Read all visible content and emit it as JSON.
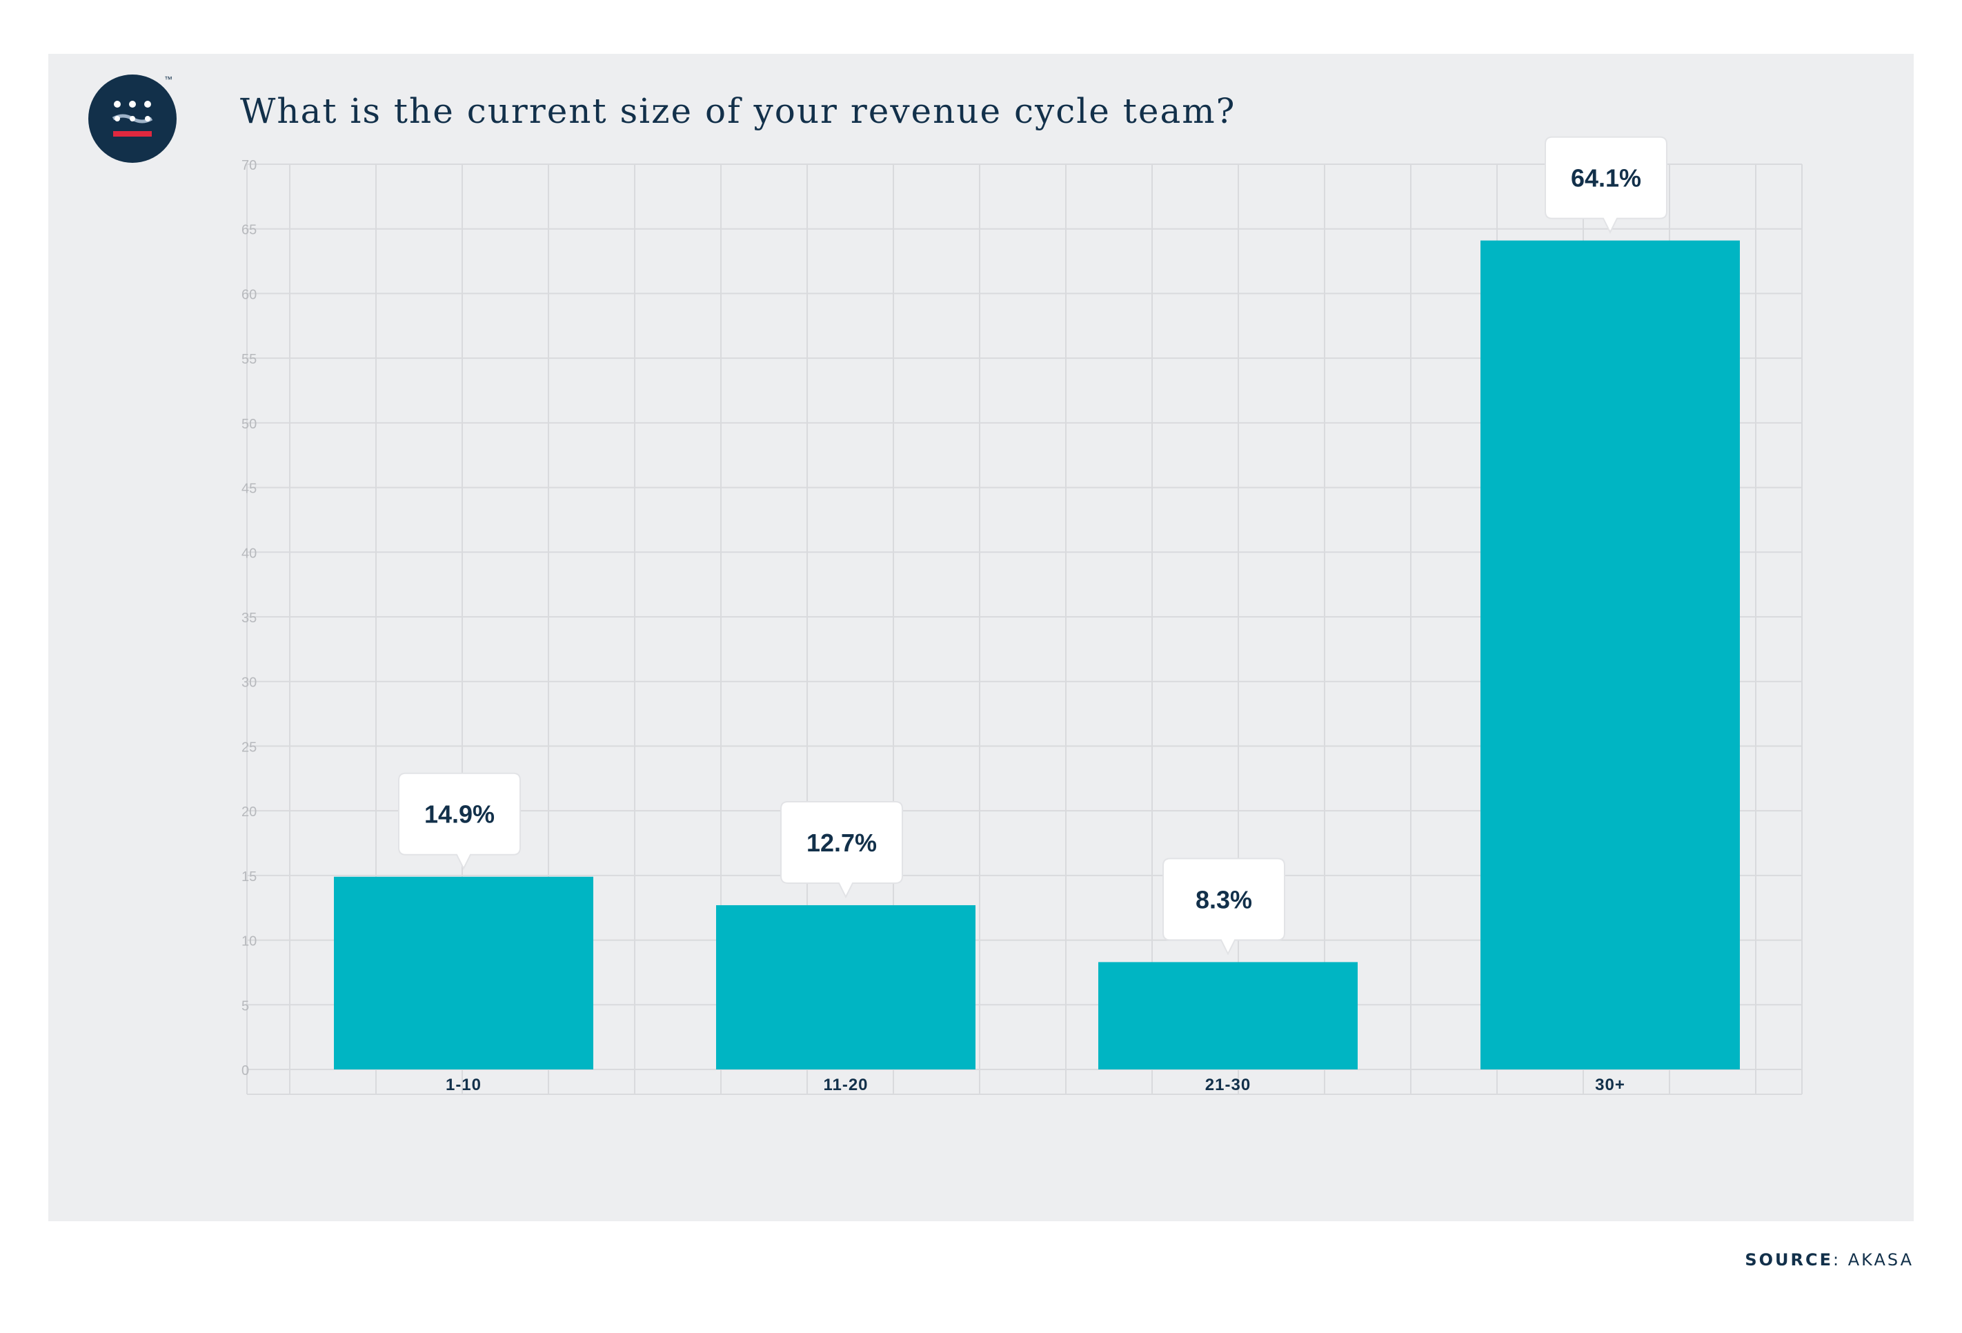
{
  "colors": {
    "background": "#ffffff",
    "panel": "#edeef0",
    "bar": "#00b5c3",
    "text_dark": "#12304a",
    "grid": "#d9dadd",
    "tick": "#b7b9bd",
    "accent_red": "#e0283f"
  },
  "logo": {
    "icon": "akasa-logo-icon",
    "trademark": "™"
  },
  "source": {
    "label": "SOURCE",
    "separator": ": ",
    "value": "AKASA"
  },
  "chart_data": {
    "type": "bar",
    "title": "What is the current size of your revenue cycle team?",
    "categories": [
      "1-10",
      "11-20",
      "21-30",
      "30+"
    ],
    "values": [
      14.9,
      12.7,
      8.3,
      64.1
    ],
    "data_labels": [
      "14.9%",
      "12.7%",
      "8.3%",
      "64.1%"
    ],
    "ylim": [
      0,
      70
    ],
    "yticks": [
      0,
      5,
      10,
      15,
      20,
      25,
      30,
      35,
      40,
      45,
      50,
      55,
      60,
      65,
      70
    ],
    "xlabel": "",
    "ylabel": "",
    "grid": true,
    "legend": "none"
  }
}
